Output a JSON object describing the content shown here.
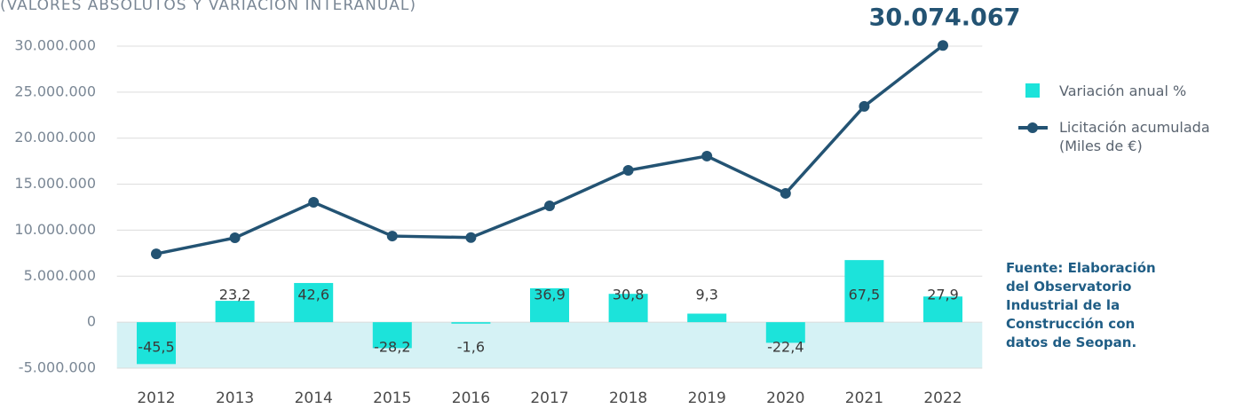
{
  "chart_data": {
    "type": "bar-line",
    "subtitle": "(VALORES ABSOLUTOS Y VARIACIÓN INTERANUAL)",
    "categories": [
      "2012",
      "2013",
      "2014",
      "2015",
      "2016",
      "2017",
      "2018",
      "2019",
      "2020",
      "2021",
      "2022"
    ],
    "series": [
      {
        "name": "Variación anual %",
        "color": "#1ce3da",
        "type": "bar",
        "axis": "y2",
        "values": [
          -45.5,
          23.2,
          42.6,
          -28.2,
          -1.6,
          36.9,
          30.8,
          9.3,
          -22.4,
          67.5,
          27.9
        ],
        "value_labels": [
          "-45,5",
          "23,2",
          "42,6",
          "-28,2",
          "-1,6",
          "36,9",
          "30,8",
          "9,3",
          "-22,4",
          "67,5",
          "27,9"
        ]
      },
      {
        "name": "Licitación acumulada (Miles de €)",
        "color": "#235373",
        "type": "line",
        "values": [
          7430000,
          9170000,
          13030000,
          9360000,
          9200000,
          12640000,
          16500000,
          18050000,
          14000000,
          23460000,
          30074067
        ],
        "value_labels": [
          null,
          null,
          null,
          null,
          null,
          null,
          null,
          null,
          null,
          null,
          "30.074.067"
        ]
      }
    ],
    "ylim": [
      -5000000,
      30000000
    ],
    "y2lim": [
      -50,
      300
    ],
    "yticks": [
      {
        "value": 30000000,
        "label": "30.000.000"
      },
      {
        "value": 25000000,
        "label": "25.000.000"
      },
      {
        "value": 20000000,
        "label": "20.000.000"
      },
      {
        "value": 15000000,
        "label": "15.000.000"
      },
      {
        "value": 10000000,
        "label": "10.000.000"
      },
      {
        "value": 5000000,
        "label": "5.000.000"
      },
      0,
      {
        "value": -5000000,
        "label": "-5.000.000"
      }
    ],
    "grid": true,
    "negative_band_color": "#d5f2f5",
    "legend": "right",
    "source": {
      "label": "Fuente:",
      "text": "Elaboración del Observatorio Industrial de la Construcción con datos de Seopan."
    }
  }
}
